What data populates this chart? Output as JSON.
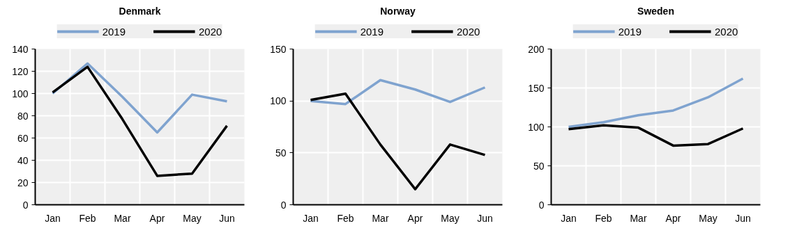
{
  "chart_data": [
    {
      "type": "line",
      "title": "Denmark",
      "categories": [
        "Jan",
        "Feb",
        "Mar",
        "Apr",
        "May",
        "Jun"
      ],
      "ylim": [
        0,
        140
      ],
      "yticks": [
        0,
        20,
        40,
        60,
        80,
        100,
        120,
        140
      ],
      "grid": true,
      "legend": "top",
      "series": [
        {
          "name": "2019",
          "color": "#7fa3cf",
          "values": [
            100,
            127,
            97,
            65,
            99,
            93
          ]
        },
        {
          "name": "2020",
          "color": "#000000",
          "values": [
            101,
            124,
            77,
            26,
            28,
            71
          ]
        }
      ]
    },
    {
      "type": "line",
      "title": "Norway",
      "categories": [
        "Jan",
        "Feb",
        "Mar",
        "Apr",
        "May",
        "Jun"
      ],
      "ylim": [
        0,
        150
      ],
      "yticks": [
        0,
        50,
        100,
        150
      ],
      "grid": true,
      "legend": "top",
      "series": [
        {
          "name": "2019",
          "color": "#7fa3cf",
          "values": [
            100,
            97,
            120,
            111,
            99,
            113
          ]
        },
        {
          "name": "2020",
          "color": "#000000",
          "values": [
            101,
            107,
            58,
            15,
            58,
            48
          ]
        }
      ]
    },
    {
      "type": "line",
      "title": "Sweden",
      "categories": [
        "Jan",
        "Feb",
        "Mar",
        "Apr",
        "May",
        "Jun"
      ],
      "ylim": [
        0,
        200
      ],
      "yticks": [
        0,
        50,
        100,
        150,
        200
      ],
      "grid": true,
      "legend": "top",
      "series": [
        {
          "name": "2019",
          "color": "#7fa3cf",
          "values": [
            100,
            106,
            115,
            121,
            138,
            162
          ]
        },
        {
          "name": "2020",
          "color": "#000000",
          "values": [
            97,
            102,
            99,
            76,
            78,
            98
          ]
        }
      ]
    }
  ]
}
